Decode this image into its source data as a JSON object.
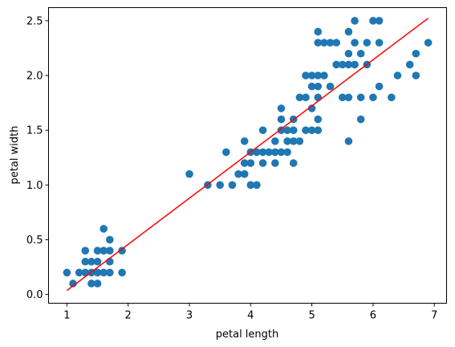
{
  "chart_data": {
    "type": "scatter",
    "xlabel": "petal length",
    "ylabel": "petal width",
    "xlim": [
      0.7,
      7.2
    ],
    "ylim": [
      -0.08,
      2.62
    ],
    "xticks": [
      1,
      2,
      3,
      4,
      5,
      6,
      7
    ],
    "yticks": [
      0.0,
      0.5,
      1.0,
      1.5,
      2.0,
      2.5
    ],
    "xtick_labels": [
      "1",
      "2",
      "3",
      "4",
      "5",
      "6",
      "7"
    ],
    "ytick_labels": [
      "0.0",
      "0.5",
      "1.0",
      "1.5",
      "2.0",
      "2.5"
    ],
    "grid": false,
    "series": [
      {
        "type": "scatter",
        "color": "#1f77b4",
        "points": [
          [
            1.0,
            0.2
          ],
          [
            1.1,
            0.1
          ],
          [
            1.2,
            0.2
          ],
          [
            1.3,
            0.2
          ],
          [
            1.3,
            0.3
          ],
          [
            1.3,
            0.4
          ],
          [
            1.4,
            0.1
          ],
          [
            1.4,
            0.2
          ],
          [
            1.4,
            0.3
          ],
          [
            1.5,
            0.1
          ],
          [
            1.5,
            0.2
          ],
          [
            1.5,
            0.3
          ],
          [
            1.5,
            0.4
          ],
          [
            1.6,
            0.2
          ],
          [
            1.6,
            0.4
          ],
          [
            1.6,
            0.6
          ],
          [
            1.7,
            0.2
          ],
          [
            1.7,
            0.3
          ],
          [
            1.7,
            0.4
          ],
          [
            1.7,
            0.5
          ],
          [
            1.9,
            0.2
          ],
          [
            1.9,
            0.4
          ],
          [
            3.0,
            1.1
          ],
          [
            3.3,
            1.0
          ],
          [
            3.5,
            1.0
          ],
          [
            3.6,
            1.3
          ],
          [
            3.7,
            1.0
          ],
          [
            3.8,
            1.1
          ],
          [
            3.9,
            1.1
          ],
          [
            3.9,
            1.2
          ],
          [
            3.9,
            1.4
          ],
          [
            4.0,
            1.0
          ],
          [
            4.0,
            1.2
          ],
          [
            4.0,
            1.3
          ],
          [
            4.1,
            1.0
          ],
          [
            4.1,
            1.3
          ],
          [
            4.2,
            1.2
          ],
          [
            4.2,
            1.3
          ],
          [
            4.2,
            1.5
          ],
          [
            4.3,
            1.3
          ],
          [
            4.4,
            1.2
          ],
          [
            4.4,
            1.3
          ],
          [
            4.4,
            1.4
          ],
          [
            4.5,
            1.3
          ],
          [
            4.5,
            1.5
          ],
          [
            4.5,
            1.6
          ],
          [
            4.5,
            1.7
          ],
          [
            4.6,
            1.3
          ],
          [
            4.6,
            1.4
          ],
          [
            4.6,
            1.5
          ],
          [
            4.7,
            1.2
          ],
          [
            4.7,
            1.4
          ],
          [
            4.7,
            1.5
          ],
          [
            4.7,
            1.6
          ],
          [
            4.8,
            1.4
          ],
          [
            4.8,
            1.8
          ],
          [
            4.9,
            1.5
          ],
          [
            4.9,
            1.8
          ],
          [
            4.9,
            2.0
          ],
          [
            5.0,
            1.5
          ],
          [
            5.0,
            1.7
          ],
          [
            5.0,
            1.9
          ],
          [
            5.0,
            2.0
          ],
          [
            5.1,
            1.5
          ],
          [
            5.1,
            1.6
          ],
          [
            5.1,
            1.8
          ],
          [
            5.1,
            1.9
          ],
          [
            5.1,
            2.0
          ],
          [
            5.1,
            2.3
          ],
          [
            5.1,
            2.4
          ],
          [
            5.2,
            2.0
          ],
          [
            5.2,
            2.3
          ],
          [
            5.3,
            1.9
          ],
          [
            5.3,
            2.3
          ],
          [
            5.4,
            2.1
          ],
          [
            5.4,
            2.3
          ],
          [
            5.5,
            1.8
          ],
          [
            5.5,
            2.1
          ],
          [
            5.6,
            1.4
          ],
          [
            5.6,
            1.8
          ],
          [
            5.6,
            2.1
          ],
          [
            5.6,
            2.2
          ],
          [
            5.6,
            2.4
          ],
          [
            5.7,
            2.1
          ],
          [
            5.7,
            2.3
          ],
          [
            5.7,
            2.5
          ],
          [
            5.8,
            1.6
          ],
          [
            5.8,
            1.8
          ],
          [
            5.8,
            2.2
          ],
          [
            5.9,
            2.1
          ],
          [
            5.9,
            2.3
          ],
          [
            6.0,
            1.8
          ],
          [
            6.0,
            2.5
          ],
          [
            6.1,
            1.9
          ],
          [
            6.1,
            2.3
          ],
          [
            6.1,
            2.5
          ],
          [
            6.3,
            1.8
          ],
          [
            6.4,
            2.0
          ],
          [
            6.6,
            2.1
          ],
          [
            6.7,
            2.0
          ],
          [
            6.7,
            2.2
          ],
          [
            6.9,
            2.3
          ]
        ]
      },
      {
        "type": "line",
        "color": "#ff0000",
        "x": [
          1.0,
          6.9
        ],
        "y": [
          0.0367,
          2.5231
        ]
      }
    ]
  }
}
